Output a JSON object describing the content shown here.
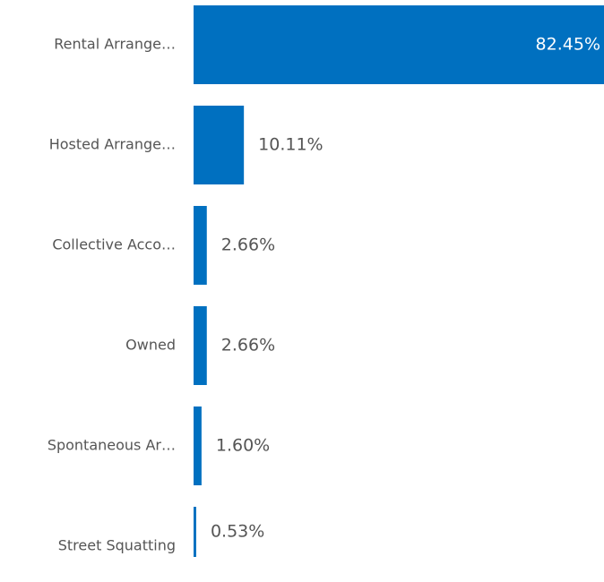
{
  "chart_data": {
    "type": "bar",
    "orientation": "horizontal",
    "categories": [
      "Rental Arrange…",
      "Hosted Arrange…",
      "Collective Acco…",
      "Owned",
      "Spontaneous Ar…",
      "Street Squatting"
    ],
    "values": [
      82.45,
      10.11,
      2.66,
      2.66,
      1.6,
      0.53
    ],
    "value_labels": [
      "82.45%",
      "10.11%",
      "2.66%",
      "2.66%",
      "1.60%",
      "0.53%"
    ],
    "color": "#0070c0"
  }
}
